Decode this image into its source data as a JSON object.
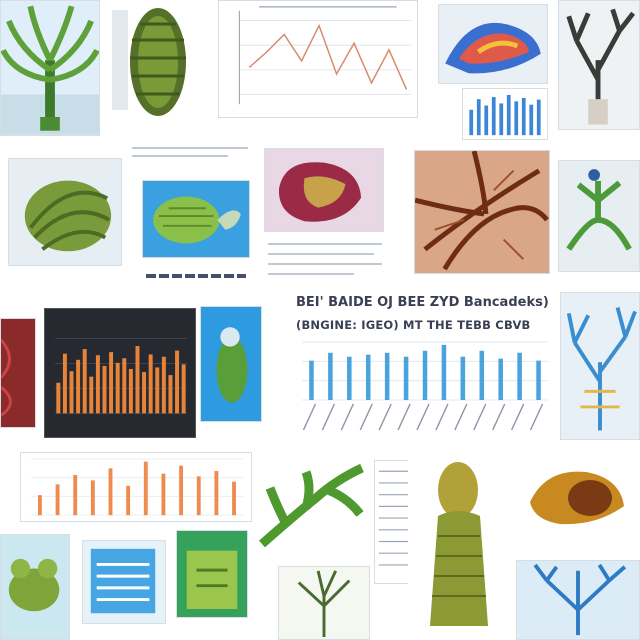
{
  "collage": {
    "main_title_line1": "BEI' BAIDE OJ BEE ZYD Bancadeks)",
    "main_title_line2": "(BNGINE: IGEO) MT THE TEBB CBVB"
  },
  "chart_data": [
    {
      "type": "bar",
      "title": "",
      "series": [
        {
          "values": [
            20,
            24,
            22,
            23,
            24,
            22,
            25,
            28,
            22,
            25,
            21,
            24,
            20
          ]
        }
      ],
      "categories": [
        "",
        "",
        "",
        "",
        "",
        "",
        "",
        "",
        "",
        "",
        "",
        "",
        ""
      ],
      "xlabel": "",
      "ylabel": "",
      "grid": true
    },
    {
      "type": "line",
      "title": "",
      "series": [
        {
          "values": [
            55,
            62,
            70,
            58,
            74,
            52,
            66,
            48,
            63,
            45
          ]
        }
      ],
      "grid": true
    },
    {
      "type": "bar",
      "title": "",
      "series": [
        {
          "values": [
            40,
            78,
            55,
            70,
            84,
            48,
            76,
            62,
            80,
            66,
            72,
            58,
            88,
            54,
            77,
            60,
            74,
            50,
            82,
            64
          ]
        }
      ],
      "grid": true
    },
    {
      "type": "bar",
      "title": "",
      "series": [
        {
          "values": [
            30,
            46,
            60,
            52,
            70,
            44,
            80,
            62,
            74,
            58,
            66,
            50
          ]
        }
      ],
      "grid": true
    },
    {
      "type": "bar",
      "title": "",
      "series": [
        {
          "values": [
            60,
            85,
            70,
            90,
            75,
            95,
            80,
            88,
            72,
            84
          ]
        }
      ],
      "grid": false
    }
  ]
}
